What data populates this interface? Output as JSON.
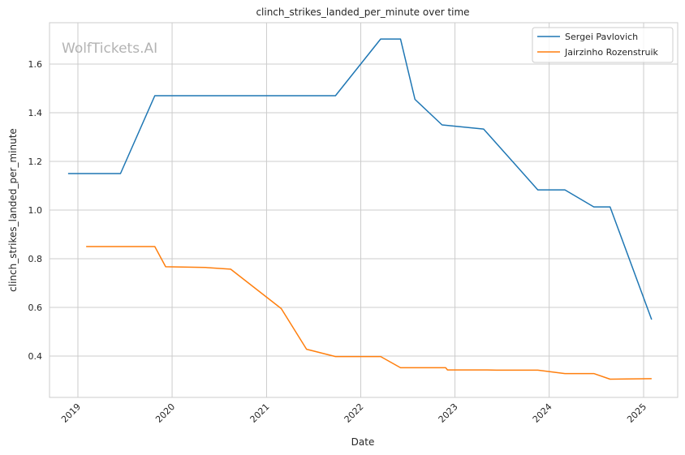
{
  "chart_data": {
    "type": "line",
    "title": "clinch_strikes_landed_per_minute over time",
    "xlabel": "Date",
    "ylabel": "clinch_strikes_landed_per_minute",
    "watermark": "WolfTickets.AI",
    "x_tick_labels": [
      "2019",
      "2020",
      "2021",
      "2022",
      "2023",
      "2024",
      "2025"
    ],
    "y_tick_labels": [
      "0.4",
      "0.6",
      "0.8",
      "1.0",
      "1.2",
      "1.4",
      "1.6"
    ],
    "y_ticks": [
      0.4,
      0.6,
      0.8,
      1.0,
      1.2,
      1.4,
      1.6
    ],
    "xlim": [
      "2018-09-13",
      "2025-05-13"
    ],
    "ylim": [
      0.23,
      1.77
    ],
    "grid": true,
    "legend_position": "top-right",
    "series": [
      {
        "name": "Sergei Pavlovich",
        "color": "#1f77b4",
        "points": [
          [
            "2018-11-24",
            1.15
          ],
          [
            "2019-06-15",
            1.15
          ],
          [
            "2019-10-26",
            1.47
          ],
          [
            "2021-09-25",
            1.47
          ],
          [
            "2022-03-19",
            1.703
          ],
          [
            "2022-06-04",
            1.703
          ],
          [
            "2022-07-30",
            1.455
          ],
          [
            "2022-11-12",
            1.35
          ],
          [
            "2023-04-22",
            1.333
          ],
          [
            "2023-11-18",
            1.083
          ],
          [
            "2024-03-02",
            1.083
          ],
          [
            "2024-06-22",
            1.013
          ],
          [
            "2024-08-24",
            1.013
          ],
          [
            "2025-02-01",
            0.55
          ]
        ]
      },
      {
        "name": "Jairzinho Rozenstruik",
        "color": "#ff7f0e",
        "points": [
          [
            "2019-02-02",
            0.85
          ],
          [
            "2019-10-26",
            0.85
          ],
          [
            "2019-12-07",
            0.767
          ],
          [
            "2020-05-09",
            0.764
          ],
          [
            "2020-08-15",
            0.757
          ],
          [
            "2021-02-27",
            0.595
          ],
          [
            "2021-06-05",
            0.428
          ],
          [
            "2021-09-25",
            0.398
          ],
          [
            "2022-03-19",
            0.398
          ],
          [
            "2022-06-04",
            0.352
          ],
          [
            "2022-11-26",
            0.352
          ],
          [
            "2022-12-03",
            0.343
          ],
          [
            "2023-05-06",
            0.343
          ],
          [
            "2023-06-10",
            0.342
          ],
          [
            "2023-11-18",
            0.342
          ],
          [
            "2024-03-02",
            0.328
          ],
          [
            "2024-06-22",
            0.328
          ],
          [
            "2024-08-24",
            0.305
          ],
          [
            "2025-02-01",
            0.307
          ]
        ]
      }
    ]
  }
}
